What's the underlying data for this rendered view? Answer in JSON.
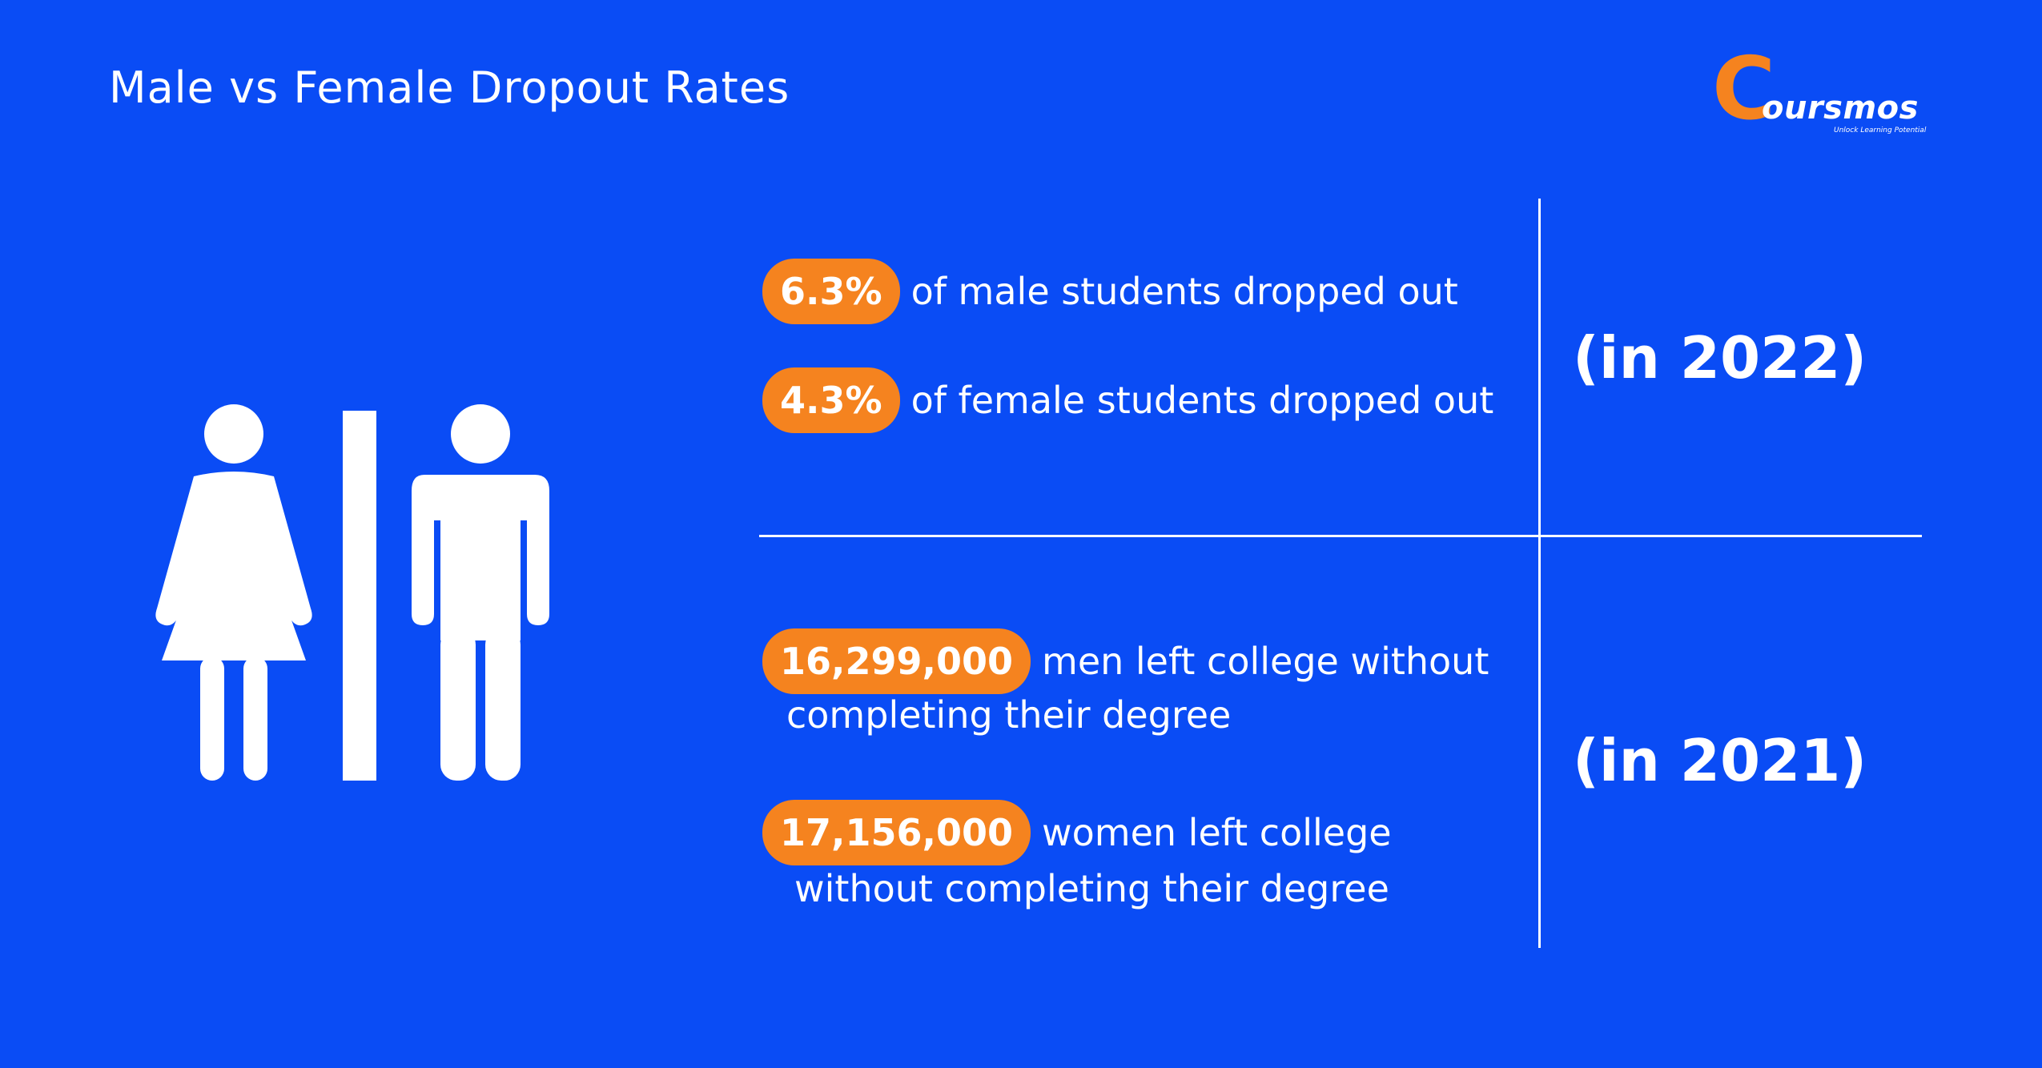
{
  "header": {
    "title": "Male vs Female Dropout Rates"
  },
  "logo": {
    "letter": "C",
    "text": "oursmos",
    "tagline": "Unlock Learning Potential"
  },
  "stats_2022": {
    "year_label": "(in 2022)",
    "male": {
      "value": "6.3%",
      "text": "of male students dropped out"
    },
    "female": {
      "value": "4.3%",
      "text": "of female students dropped out"
    }
  },
  "stats_2021": {
    "year_label": "(in 2021)",
    "men": {
      "value": "16,299,000",
      "text_line1": "men left college without",
      "text_line2": "completing their degree"
    },
    "women": {
      "value": "17,156,000",
      "text_line1": "women left college",
      "text_line2": "without completing their degree"
    }
  },
  "icons": [
    "female-person-icon",
    "male-person-icon"
  ],
  "colors": {
    "background": "#0a4cf5",
    "accent": "#f5831f",
    "text": "#ffffff"
  }
}
